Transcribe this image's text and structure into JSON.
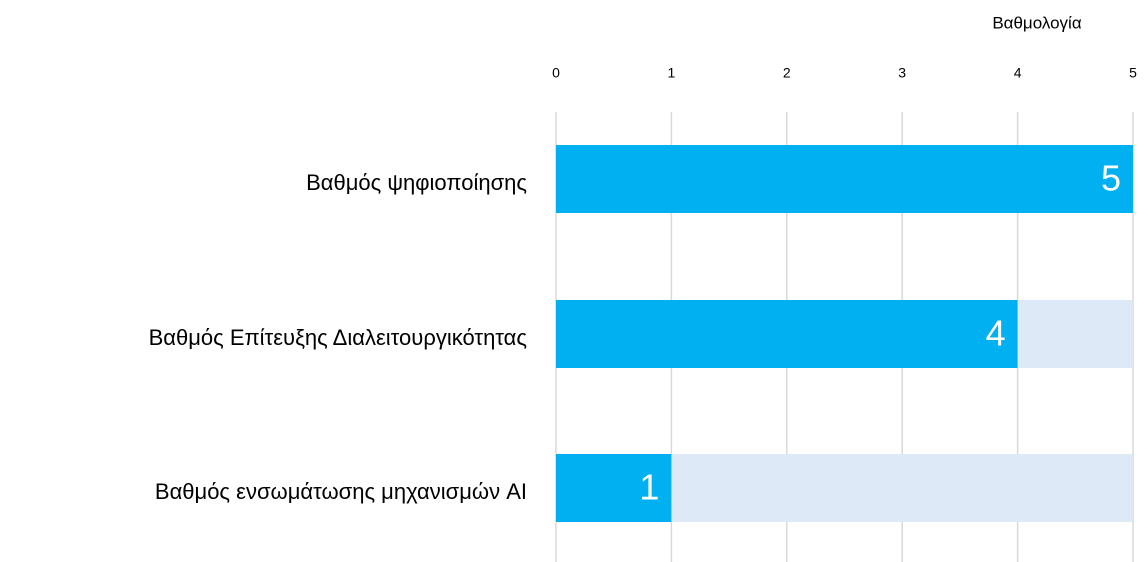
{
  "chart_data": {
    "type": "bar",
    "orientation": "horizontal",
    "x_axis_label": "Βαθμολογία",
    "categories": [
      "Βαθμός ψηφιοποίησης",
      "Βαθμός Επίτευξης Διαλειτουργικότητας",
      "Βαθμός ενσωμάτωσης μηχανισμών AI"
    ],
    "values": [
      5,
      4,
      1
    ],
    "color": "#00b0f0",
    "track_color": "#dde9f6",
    "xlim": [
      0,
      5
    ],
    "xticks": [
      0,
      1,
      2,
      3,
      4,
      5
    ],
    "grid": true
  }
}
